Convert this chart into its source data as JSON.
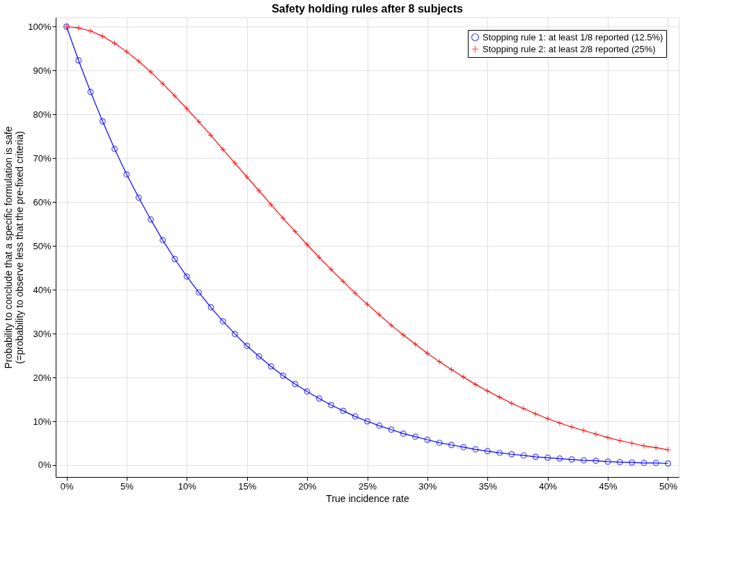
{
  "chart_data": {
    "type": "line",
    "title": "Safety holding rules after 8 subjects",
    "xlabel": "True incidence rate",
    "ylabel": "Probability to conclude that a specific formulation is safe\n(=probability to observe less that the pre-fixed criteria)",
    "x": [
      0,
      1,
      2,
      3,
      4,
      5,
      6,
      7,
      8,
      9,
      10,
      11,
      12,
      13,
      14,
      15,
      16,
      17,
      18,
      19,
      20,
      21,
      22,
      23,
      24,
      25,
      26,
      27,
      28,
      29,
      30,
      31,
      32,
      33,
      34,
      35,
      36,
      37,
      38,
      39,
      40,
      41,
      42,
      43,
      44,
      45,
      46,
      47,
      48,
      49,
      50
    ],
    "series": [
      {
        "name": "Stopping rule 1: at least 1/8 reported (12.5%)",
        "color": "#0000ff",
        "marker": "circle",
        "values": [
          100,
          92.3,
          85.1,
          78.4,
          72.1,
          66.3,
          61.0,
          56.0,
          51.3,
          47.0,
          43.0,
          39.4,
          36.0,
          32.8,
          29.9,
          27.2,
          24.8,
          22.5,
          20.4,
          18.5,
          16.8,
          15.2,
          13.7,
          12.4,
          11.1,
          10.0,
          9.0,
          8.1,
          7.2,
          6.5,
          5.8,
          5.1,
          4.6,
          4.1,
          3.6,
          3.2,
          2.8,
          2.5,
          2.2,
          1.9,
          1.7,
          1.5,
          1.3,
          1.1,
          1.0,
          0.8,
          0.7,
          0.6,
          0.5,
          0.5,
          0.4
        ]
      },
      {
        "name": "Stopping rule 2: at least 2/8 reported (25%)",
        "color": "#ff0000",
        "marker": "cross",
        "values": [
          100,
          99.7,
          99.0,
          97.8,
          96.2,
          94.3,
          92.1,
          89.7,
          87.0,
          84.2,
          81.3,
          78.3,
          75.2,
          72.0,
          68.9,
          65.7,
          62.6,
          59.4,
          56.3,
          53.3,
          50.3,
          47.4,
          44.6,
          41.9,
          39.2,
          36.7,
          34.3,
          31.9,
          29.7,
          27.6,
          25.5,
          23.6,
          21.8,
          20.1,
          18.4,
          16.9,
          15.5,
          14.1,
          12.9,
          11.7,
          10.6,
          9.6,
          8.7,
          7.9,
          7.1,
          6.3,
          5.6,
          5.0,
          4.4,
          4.0,
          3.5
        ]
      }
    ],
    "xlim": [
      -0.9,
      50.9
    ],
    "ylim": [
      -2.7,
      102.1
    ],
    "xticks": [
      {
        "value": 0,
        "label": "0%"
      },
      {
        "value": 5,
        "label": "5%"
      },
      {
        "value": 10,
        "label": "10%"
      },
      {
        "value": 15,
        "label": "15%"
      },
      {
        "value": 20,
        "label": "20%"
      },
      {
        "value": 25,
        "label": "25%"
      },
      {
        "value": 30,
        "label": "30%"
      },
      {
        "value": 35,
        "label": "35%"
      },
      {
        "value": 40,
        "label": "40%"
      },
      {
        "value": 45,
        "label": "45%"
      },
      {
        "value": 50,
        "label": "50%"
      }
    ],
    "yticks": [
      {
        "value": 0,
        "label": "0%"
      },
      {
        "value": 10,
        "label": "10%"
      },
      {
        "value": 20,
        "label": "20%"
      },
      {
        "value": 30,
        "label": "30%"
      },
      {
        "value": 40,
        "label": "40%"
      },
      {
        "value": 50,
        "label": "50%"
      },
      {
        "value": 60,
        "label": "60%"
      },
      {
        "value": 70,
        "label": "70%"
      },
      {
        "value": 80,
        "label": "80%"
      },
      {
        "value": 90,
        "label": "90%"
      },
      {
        "value": 100,
        "label": "100%"
      }
    ],
    "grid": true,
    "legend": "top right",
    "line_style": "solid"
  }
}
